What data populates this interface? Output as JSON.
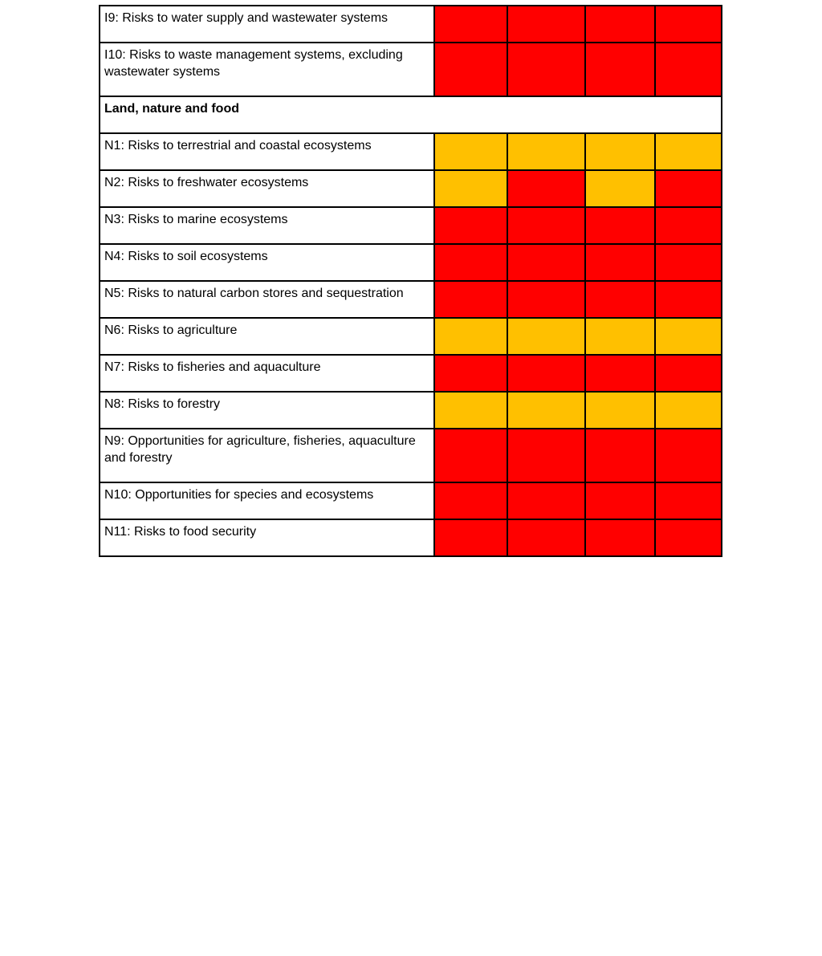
{
  "page": {
    "background_color": "#ffffff"
  },
  "table": {
    "description": "risk-rating-matrix",
    "colors": {
      "red": "#ff0000",
      "amber": "#ffc000",
      "border": "#000000"
    },
    "rating_columns": 4,
    "rows": [
      {
        "type": "risk",
        "label": "I9: Risks to water supply and wastewater systems",
        "cells": [
          "red",
          "red",
          "red",
          "red"
        ]
      },
      {
        "type": "risk",
        "label": "I10: Risks to waste management systems, excluding wastewater systems",
        "cells": [
          "red",
          "red",
          "red",
          "red"
        ]
      },
      {
        "type": "section",
        "label": "Land, nature and food"
      },
      {
        "type": "risk",
        "label": "N1: Risks to terrestrial and coastal ecosystems",
        "cells": [
          "amber",
          "amber",
          "amber",
          "amber"
        ]
      },
      {
        "type": "risk",
        "label": "N2: Risks to freshwater ecosystems",
        "cells": [
          "amber",
          "red",
          "amber",
          "red"
        ]
      },
      {
        "type": "risk",
        "label": "N3: Risks to marine ecosystems",
        "cells": [
          "red",
          "red",
          "red",
          "red"
        ]
      },
      {
        "type": "risk",
        "label": "N4: Risks to soil ecosystems",
        "cells": [
          "red",
          "red",
          "red",
          "red"
        ]
      },
      {
        "type": "risk",
        "label": "N5: Risks to natural carbon stores and sequestration",
        "cells": [
          "red",
          "red",
          "red",
          "red"
        ]
      },
      {
        "type": "risk",
        "label": "N6: Risks to agriculture",
        "cells": [
          "amber",
          "amber",
          "amber",
          "amber"
        ]
      },
      {
        "type": "risk",
        "label": "N7: Risks to fisheries and aquaculture",
        "cells": [
          "red",
          "red",
          "red",
          "red"
        ]
      },
      {
        "type": "risk",
        "label": "N8: Risks to forestry",
        "cells": [
          "amber",
          "amber",
          "amber",
          "amber"
        ]
      },
      {
        "type": "risk",
        "label": "N9: Opportunities for agriculture, fisheries, aquaculture and forestry",
        "cells": [
          "red",
          "red",
          "red",
          "red"
        ]
      },
      {
        "type": "risk",
        "label": "N10: Opportunities for species and ecosystems",
        "cells": [
          "red",
          "red",
          "red",
          "red"
        ]
      },
      {
        "type": "risk",
        "label": "N11: Risks to food security",
        "cells": [
          "red",
          "red",
          "red",
          "red"
        ]
      }
    ]
  }
}
